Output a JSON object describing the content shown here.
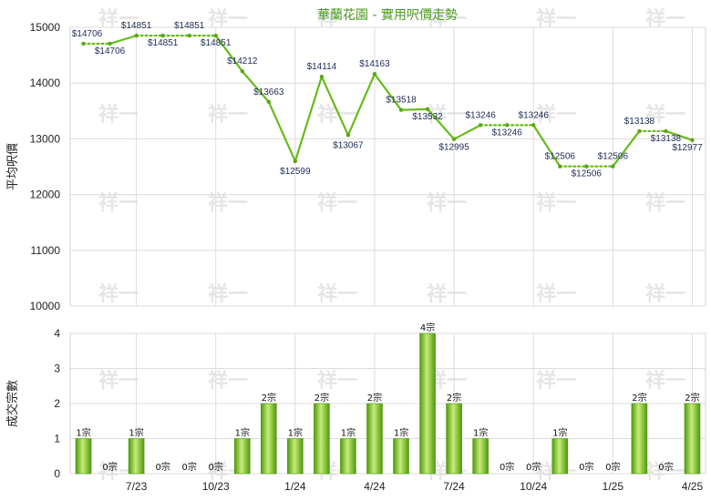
{
  "watermark": "祥一",
  "chart_data": [
    {
      "type": "line",
      "title": "華蘭花園 - 實用呎價走勢",
      "ylabel": "平均呎價",
      "ylim": [
        10000,
        15000
      ],
      "yticks": [
        "10000",
        "11000",
        "12000",
        "13000",
        "14000",
        "15000"
      ],
      "line_color": "#66bb1a",
      "points": [
        {
          "v": 14706,
          "label": "$14706"
        },
        {
          "v": 14706,
          "label": "$14706"
        },
        {
          "v": 14851,
          "label": "$14851"
        },
        {
          "v": 14851,
          "label": "$14851"
        },
        {
          "v": 14851,
          "label": "$14851"
        },
        {
          "v": 14851,
          "label": "$14851"
        },
        {
          "v": 14212,
          "label": "$14212"
        },
        {
          "v": 13663,
          "label": "$13663"
        },
        {
          "v": 12599,
          "label": "$12599"
        },
        {
          "v": 14114,
          "label": "$14114"
        },
        {
          "v": 13067,
          "label": "$13067"
        },
        {
          "v": 14163,
          "label": "$14163"
        },
        {
          "v": 13518,
          "label": "$13518"
        },
        {
          "v": 13532,
          "label": "$13532"
        },
        {
          "v": 12995,
          "label": "$12995"
        },
        {
          "v": 13246,
          "label": "$13246"
        },
        {
          "v": 13246,
          "label": "$13246"
        },
        {
          "v": 13246,
          "label": "$13246"
        },
        {
          "v": 12506,
          "label": "$12506"
        },
        {
          "v": 12506,
          "label": "$12506"
        },
        {
          "v": 12506,
          "label": "$12506"
        },
        {
          "v": 13138,
          "label": "$13138"
        },
        {
          "v": 13138,
          "label": "$13138"
        },
        {
          "v": 12977,
          "label": "$12977"
        }
      ],
      "dotted_segments": [
        0,
        2,
        3,
        4,
        15,
        16,
        18,
        19,
        21
      ]
    },
    {
      "type": "bar",
      "ylabel": "成交宗數",
      "ylim": [
        0,
        4
      ],
      "yticks": [
        "0",
        "1",
        "2",
        "3",
        "4"
      ],
      "xticks": [
        {
          "index": 2,
          "label": "7/23"
        },
        {
          "index": 5,
          "label": "10/23"
        },
        {
          "index": 8,
          "label": "1/24"
        },
        {
          "index": 11,
          "label": "4/24"
        },
        {
          "index": 14,
          "label": "7/24"
        },
        {
          "index": 17,
          "label": "10/24"
        },
        {
          "index": 20,
          "label": "1/25"
        },
        {
          "index": 23,
          "label": "4/25"
        }
      ],
      "values": [
        1,
        0,
        1,
        0,
        0,
        0,
        1,
        2,
        1,
        2,
        1,
        2,
        1,
        4,
        2,
        1,
        0,
        0,
        1,
        0,
        0,
        2,
        0,
        2
      ],
      "value_labels": [
        "1宗",
        "0宗",
        "1宗",
        "0宗",
        "0宗",
        "0宗",
        "1宗",
        "2宗",
        "1宗",
        "2宗",
        "1宗",
        "2宗",
        "1宗",
        "4宗",
        "2宗",
        "1宗",
        "0宗",
        "0宗",
        "1宗",
        "0宗",
        "0宗",
        "2宗",
        "0宗",
        "2宗"
      ],
      "bar_color": "#77c422"
    }
  ]
}
